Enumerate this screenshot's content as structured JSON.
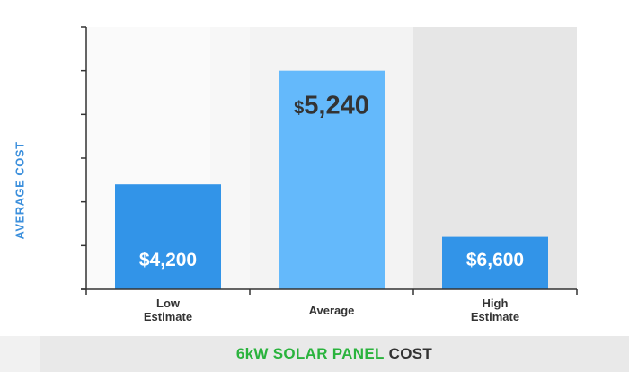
{
  "colors": {
    "accent_blue": "#3b8fdc",
    "bar_dark": "#3294e8",
    "bar_light": "#64b9fb",
    "footer_green": "#2ab33d",
    "footer_dark": "#333333",
    "label_dark": "#333333",
    "value_white": "#ffffff"
  },
  "chart_data": {
    "type": "bar",
    "categories": [
      [
        "Low",
        "Estimate"
      ],
      [
        "Average"
      ],
      [
        "High",
        "Estimate"
      ]
    ],
    "bar_heights": [
      24,
      50,
      12
    ],
    "value_labels": [
      {
        "currency": "$",
        "amount": "4,200"
      },
      {
        "currency": "$",
        "amount": "5,240"
      },
      {
        "currency": "$",
        "amount": "6,600"
      }
    ],
    "ylabel": "AVERAGE COST",
    "ylim": [
      0,
      60
    ],
    "ytick_step": 10,
    "title_part1": "6kW SOLAR PANEL",
    "title_part2": "COST",
    "grid": false
  }
}
